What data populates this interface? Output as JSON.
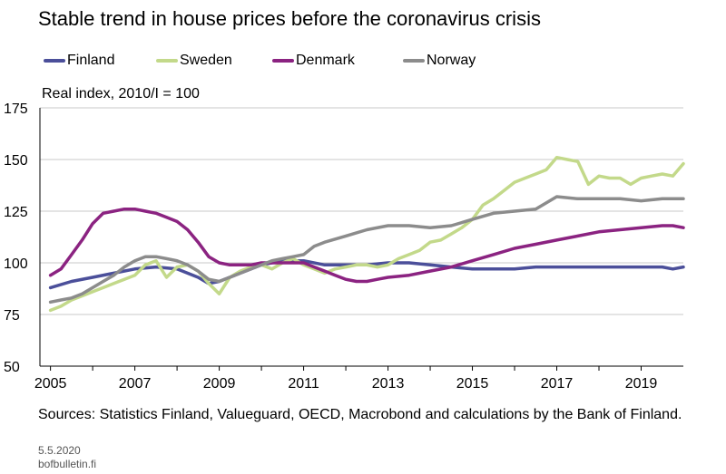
{
  "chart_data": {
    "type": "line",
    "title": "Stable trend in house prices before the coronavirus crisis",
    "ylabel": "Real index, 2010/I = 100",
    "xlabel": "",
    "source": "Sources: Statistics Finland, Valueguard, OECD, Macrobond and calculations by the Bank of Finland.",
    "date": "5.5.2020",
    "site": "bofbulletin.fi",
    "ylim": [
      50,
      175
    ],
    "yticks": [
      "50",
      "75",
      "100",
      "125",
      "150",
      "175"
    ],
    "xlim": [
      2004.75,
      2020.0
    ],
    "xticks": [
      "2005",
      "2007",
      "2009",
      "2011",
      "2013",
      "2015",
      "2017",
      "2019"
    ],
    "grid": true,
    "legend_position": "top",
    "series": [
      {
        "name": "Finland",
        "color": "#4b4f9a",
        "x": [
          2005.0,
          2005.5,
          2006.0,
          2006.5,
          2007.0,
          2007.5,
          2008.0,
          2008.25,
          2008.5,
          2008.75,
          2009.0,
          2009.5,
          2010.0,
          2010.5,
          2011.0,
          2011.5,
          2012.0,
          2012.5,
          2013.0,
          2013.5,
          2014.0,
          2014.5,
          2015.0,
          2015.5,
          2016.0,
          2016.5,
          2017.0,
          2017.5,
          2018.0,
          2018.5,
          2019.0,
          2019.5,
          2019.75,
          2020.0
        ],
        "y": [
          88,
          91,
          93,
          95,
          97,
          98,
          97,
          95,
          93,
          90,
          91,
          95,
          99,
          101,
          101,
          99,
          99,
          99,
          100,
          100,
          99,
          98,
          97,
          97,
          97,
          98,
          98,
          98,
          98,
          98,
          98,
          98,
          97,
          98
        ]
      },
      {
        "name": "Sweden",
        "color": "#c3d98a",
        "x": [
          2005.0,
          2005.25,
          2005.5,
          2005.75,
          2006.0,
          2006.25,
          2006.5,
          2006.75,
          2007.0,
          2007.25,
          2007.5,
          2007.75,
          2008.0,
          2008.25,
          2008.5,
          2008.75,
          2009.0,
          2009.25,
          2009.5,
          2009.75,
          2010.0,
          2010.25,
          2010.5,
          2010.75,
          2011.0,
          2011.25,
          2011.5,
          2011.75,
          2012.0,
          2012.25,
          2012.5,
          2012.75,
          2013.0,
          2013.25,
          2013.5,
          2013.75,
          2014.0,
          2014.25,
          2014.5,
          2014.75,
          2015.0,
          2015.25,
          2015.5,
          2015.75,
          2016.0,
          2016.25,
          2016.5,
          2016.75,
          2017.0,
          2017.25,
          2017.5,
          2017.75,
          2018.0,
          2018.25,
          2018.5,
          2018.75,
          2019.0,
          2019.25,
          2019.5,
          2019.75,
          2020.0
        ],
        "y": [
          77,
          79,
          82,
          84,
          86,
          88,
          90,
          92,
          94,
          99,
          101,
          93,
          98,
          99,
          96,
          90,
          85,
          93,
          96,
          98,
          99,
          97,
          100,
          102,
          99,
          97,
          95,
          97,
          98,
          99,
          99,
          98,
          99,
          102,
          104,
          106,
          110,
          111,
          114,
          117,
          121,
          128,
          131,
          135,
          139,
          141,
          143,
          145,
          151,
          150,
          149,
          138,
          142,
          141,
          141,
          138,
          141,
          142,
          143,
          142,
          148
        ]
      },
      {
        "name": "Denmark",
        "color": "#8b2381",
        "x": [
          2005.0,
          2005.25,
          2005.5,
          2005.75,
          2006.0,
          2006.25,
          2006.5,
          2006.75,
          2007.0,
          2007.25,
          2007.5,
          2007.75,
          2008.0,
          2008.25,
          2008.5,
          2008.75,
          2009.0,
          2009.25,
          2009.5,
          2009.75,
          2010.0,
          2010.5,
          2011.0,
          2011.25,
          2011.5,
          2011.75,
          2012.0,
          2012.25,
          2012.5,
          2012.75,
          2013.0,
          2013.5,
          2014.0,
          2014.5,
          2015.0,
          2015.5,
          2016.0,
          2016.5,
          2017.0,
          2017.5,
          2018.0,
          2018.5,
          2019.0,
          2019.5,
          2019.75,
          2020.0
        ],
        "y": [
          94,
          97,
          104,
          111,
          119,
          124,
          125,
          126,
          126,
          125,
          124,
          122,
          120,
          116,
          110,
          103,
          100,
          99,
          99,
          99,
          100,
          100,
          100,
          98,
          96,
          94,
          92,
          91,
          91,
          92,
          93,
          94,
          96,
          98,
          101,
          104,
          107,
          109,
          111,
          113,
          115,
          116,
          117,
          118,
          118,
          117
        ]
      },
      {
        "name": "Norway",
        "color": "#8c8c8c",
        "x": [
          2005.0,
          2005.25,
          2005.5,
          2005.75,
          2006.0,
          2006.25,
          2006.5,
          2006.75,
          2007.0,
          2007.25,
          2007.5,
          2007.75,
          2008.0,
          2008.25,
          2008.5,
          2008.75,
          2009.0,
          2009.25,
          2009.5,
          2009.75,
          2010.0,
          2010.25,
          2010.5,
          2010.75,
          2011.0,
          2011.25,
          2011.5,
          2012.0,
          2012.5,
          2013.0,
          2013.5,
          2014.0,
          2014.5,
          2015.0,
          2015.5,
          2016.0,
          2016.5,
          2017.0,
          2017.5,
          2018.0,
          2018.5,
          2019.0,
          2019.5,
          2019.75,
          2020.0
        ],
        "y": [
          81,
          82,
          83,
          85,
          88,
          91,
          94,
          98,
          101,
          103,
          103,
          102,
          101,
          99,
          96,
          92,
          91,
          93,
          95,
          97,
          99,
          101,
          102,
          103,
          104,
          108,
          110,
          113,
          116,
          118,
          118,
          117,
          118,
          121,
          124,
          125,
          126,
          132,
          131,
          131,
          131,
          130,
          131,
          131,
          131
        ]
      }
    ]
  }
}
